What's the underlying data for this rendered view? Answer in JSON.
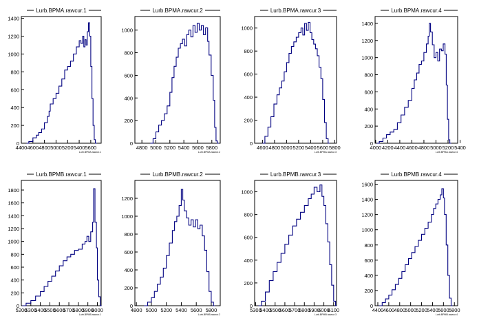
{
  "chart_data": [
    {
      "type": "histogram",
      "title": "Lurb.BPMA.rawcur.1",
      "xlabel": "Lurb.BPMA.rawcur.1",
      "x_ticks": [
        4400,
        4600,
        4800,
        5000,
        5200,
        5400,
        5600
      ],
      "xlim": [
        4400,
        5780
      ],
      "y_ticks": [
        0,
        200,
        400,
        600,
        800,
        1000,
        1200,
        1400
      ],
      "ylim": [
        0,
        1420
      ],
      "points": [
        [
          4490,
          0
        ],
        [
          4530,
          20
        ],
        [
          4600,
          60
        ],
        [
          4660,
          90
        ],
        [
          4700,
          120
        ],
        [
          4750,
          160
        ],
        [
          4800,
          230
        ],
        [
          4850,
          300
        ],
        [
          4880,
          360
        ],
        [
          4900,
          440
        ],
        [
          4950,
          500
        ],
        [
          5000,
          560
        ],
        [
          5050,
          640
        ],
        [
          5100,
          720
        ],
        [
          5150,
          820
        ],
        [
          5200,
          860
        ],
        [
          5250,
          920
        ],
        [
          5300,
          1000
        ],
        [
          5350,
          1080
        ],
        [
          5400,
          1150
        ],
        [
          5430,
          1120
        ],
        [
          5460,
          1200
        ],
        [
          5480,
          1080
        ],
        [
          5500,
          1160
        ],
        [
          5520,
          1100
        ],
        [
          5540,
          1250
        ],
        [
          5560,
          1350
        ],
        [
          5580,
          1200
        ],
        [
          5600,
          860
        ],
        [
          5620,
          500
        ],
        [
          5640,
          200
        ],
        [
          5660,
          40
        ],
        [
          5680,
          0
        ]
      ]
    },
    {
      "type": "histogram",
      "title": "Lurb.BPMA.rawcur.2",
      "xlabel": "Lurb.BPMA.rawcur.2",
      "x_ticks": [
        4800,
        5000,
        5200,
        5400,
        5600,
        5800
      ],
      "xlim": [
        4700,
        5920
      ],
      "y_ticks": [
        0,
        200,
        400,
        600,
        800,
        1000
      ],
      "ylim": [
        0,
        1120
      ],
      "points": [
        [
          4920,
          0
        ],
        [
          4960,
          40
        ],
        [
          5000,
          100
        ],
        [
          5040,
          160
        ],
        [
          5080,
          200
        ],
        [
          5120,
          260
        ],
        [
          5160,
          330
        ],
        [
          5200,
          450
        ],
        [
          5230,
          580
        ],
        [
          5260,
          680
        ],
        [
          5290,
          760
        ],
        [
          5320,
          840
        ],
        [
          5350,
          880
        ],
        [
          5380,
          920
        ],
        [
          5410,
          860
        ],
        [
          5440,
          960
        ],
        [
          5470,
          1000
        ],
        [
          5500,
          940
        ],
        [
          5530,
          1040
        ],
        [
          5560,
          980
        ],
        [
          5590,
          1060
        ],
        [
          5620,
          1000
        ],
        [
          5650,
          1040
        ],
        [
          5680,
          960
        ],
        [
          5710,
          1020
        ],
        [
          5740,
          900
        ],
        [
          5760,
          780
        ],
        [
          5790,
          600
        ],
        [
          5820,
          380
        ],
        [
          5840,
          140
        ],
        [
          5860,
          20
        ],
        [
          5880,
          0
        ]
      ]
    },
    {
      "type": "histogram",
      "title": "Lurb.BPMA.rawcur.3",
      "xlabel": "Lurb.BPMA.rawcur.3",
      "x_ticks": [
        4600,
        4800,
        5000,
        5200,
        5400,
        5600,
        5800
      ],
      "xlim": [
        4470,
        5830
      ],
      "y_ticks": [
        0,
        200,
        400,
        600,
        800,
        1000
      ],
      "ylim": [
        0,
        1100
      ],
      "points": [
        [
          4600,
          0
        ],
        [
          4640,
          60
        ],
        [
          4690,
          140
        ],
        [
          4740,
          230
        ],
        [
          4790,
          340
        ],
        [
          4840,
          420
        ],
        [
          4880,
          480
        ],
        [
          4920,
          540
        ],
        [
          4960,
          620
        ],
        [
          5000,
          700
        ],
        [
          5040,
          780
        ],
        [
          5080,
          840
        ],
        [
          5120,
          880
        ],
        [
          5160,
          920
        ],
        [
          5200,
          960
        ],
        [
          5240,
          1000
        ],
        [
          5270,
          940
        ],
        [
          5300,
          1040
        ],
        [
          5330,
          980
        ],
        [
          5360,
          1050
        ],
        [
          5390,
          960
        ],
        [
          5420,
          900
        ],
        [
          5450,
          860
        ],
        [
          5480,
          820
        ],
        [
          5510,
          760
        ],
        [
          5540,
          660
        ],
        [
          5570,
          560
        ],
        [
          5600,
          380
        ],
        [
          5630,
          180
        ],
        [
          5660,
          40
        ],
        [
          5690,
          0
        ]
      ]
    },
    {
      "type": "histogram",
      "title": "Lurb.BPMA.rawcur.4",
      "xlabel": "Lurb.BPMA.rawcur.4",
      "x_ticks": [
        4000,
        4200,
        4400,
        4600,
        4800,
        5000,
        5200,
        5400
      ],
      "xlim": [
        3990,
        5360
      ],
      "y_ticks": [
        0,
        200,
        400,
        600,
        800,
        1000,
        1200,
        1400
      ],
      "ylim": [
        0,
        1480
      ],
      "points": [
        [
          4020,
          0
        ],
        [
          4060,
          20
        ],
        [
          4120,
          60
        ],
        [
          4180,
          100
        ],
        [
          4240,
          130
        ],
        [
          4300,
          160
        ],
        [
          4360,
          240
        ],
        [
          4420,
          330
        ],
        [
          4480,
          420
        ],
        [
          4540,
          500
        ],
        [
          4600,
          640
        ],
        [
          4640,
          740
        ],
        [
          4680,
          820
        ],
        [
          4720,
          920
        ],
        [
          4760,
          960
        ],
        [
          4800,
          1060
        ],
        [
          4840,
          1160
        ],
        [
          4870,
          1250
        ],
        [
          4890,
          1400
        ],
        [
          4910,
          1300
        ],
        [
          4940,
          1150
        ],
        [
          4970,
          1000
        ],
        [
          5000,
          1060
        ],
        [
          5030,
          960
        ],
        [
          5060,
          1100
        ],
        [
          5090,
          1080
        ],
        [
          5120,
          1160
        ],
        [
          5150,
          1040
        ],
        [
          5170,
          680
        ],
        [
          5190,
          280
        ],
        [
          5210,
          40
        ],
        [
          5230,
          0
        ]
      ]
    },
    {
      "type": "histogram",
      "title": "Lurb.BPMB.rawcur.1",
      "xlabel": "Lurb.BPMB.rawcur.1",
      "x_ticks": [
        5200,
        5300,
        5400,
        5500,
        5600,
        5700,
        5800,
        5900,
        6000
      ],
      "xlim": [
        5200,
        6040
      ],
      "y_ticks": [
        0,
        200,
        400,
        600,
        800,
        1000,
        1200,
        1400,
        1600,
        1800
      ],
      "ylim": [
        0,
        1950
      ],
      "points": [
        [
          5210,
          0
        ],
        [
          5250,
          40
        ],
        [
          5300,
          80
        ],
        [
          5350,
          150
        ],
        [
          5400,
          220
        ],
        [
          5440,
          300
        ],
        [
          5480,
          380
        ],
        [
          5520,
          460
        ],
        [
          5560,
          540
        ],
        [
          5600,
          620
        ],
        [
          5640,
          700
        ],
        [
          5680,
          760
        ],
        [
          5720,
          800
        ],
        [
          5760,
          860
        ],
        [
          5800,
          880
        ],
        [
          5840,
          960
        ],
        [
          5870,
          1000
        ],
        [
          5890,
          1080
        ],
        [
          5910,
          1000
        ],
        [
          5930,
          1150
        ],
        [
          5950,
          1300
        ],
        [
          5960,
          1820
        ],
        [
          5975,
          1300
        ],
        [
          5990,
          900
        ],
        [
          6000,
          400
        ],
        [
          6015,
          140
        ],
        [
          6030,
          0
        ]
      ]
    },
    {
      "type": "histogram",
      "title": "Lurb.BPMB.rawcur.2",
      "xlabel": "Lurb.BPMB.rawcur.2",
      "x_ticks": [
        4800,
        5000,
        5200,
        5400,
        5600,
        5800
      ],
      "xlim": [
        4780,
        5920
      ],
      "y_ticks": [
        0,
        200,
        400,
        600,
        800,
        1000,
        1200
      ],
      "ylim": [
        0,
        1400
      ],
      "points": [
        [
          4900,
          0
        ],
        [
          4950,
          40
        ],
        [
          5000,
          90
        ],
        [
          5040,
          160
        ],
        [
          5080,
          240
        ],
        [
          5120,
          320
        ],
        [
          5160,
          420
        ],
        [
          5200,
          560
        ],
        [
          5240,
          700
        ],
        [
          5280,
          840
        ],
        [
          5310,
          940
        ],
        [
          5340,
          1000
        ],
        [
          5370,
          1120
        ],
        [
          5400,
          1300
        ],
        [
          5420,
          1180
        ],
        [
          5440,
          1060
        ],
        [
          5470,
          980
        ],
        [
          5500,
          900
        ],
        [
          5530,
          960
        ],
        [
          5560,
          880
        ],
        [
          5590,
          960
        ],
        [
          5620,
          860
        ],
        [
          5650,
          900
        ],
        [
          5680,
          780
        ],
        [
          5710,
          620
        ],
        [
          5740,
          380
        ],
        [
          5770,
          160
        ],
        [
          5800,
          40
        ],
        [
          5830,
          0
        ]
      ]
    },
    {
      "type": "histogram",
      "title": "Lurb.BPMB.rawcur.3",
      "xlabel": "Lurb.BPMB.rawcur.3",
      "x_ticks": [
        5300,
        5400,
        5500,
        5600,
        5700,
        5800,
        5900,
        6000,
        6100
      ],
      "xlim": [
        5290,
        6130
      ],
      "y_ticks": [
        0,
        200,
        400,
        600,
        800,
        1000
      ],
      "ylim": [
        0,
        1100
      ],
      "points": [
        [
          5330,
          0
        ],
        [
          5360,
          40
        ],
        [
          5400,
          120
        ],
        [
          5440,
          220
        ],
        [
          5480,
          300
        ],
        [
          5520,
          380
        ],
        [
          5560,
          460
        ],
        [
          5600,
          540
        ],
        [
          5640,
          620
        ],
        [
          5680,
          700
        ],
        [
          5720,
          760
        ],
        [
          5760,
          820
        ],
        [
          5800,
          880
        ],
        [
          5840,
          940
        ],
        [
          5870,
          980
        ],
        [
          5900,
          1040
        ],
        [
          5930,
          1000
        ],
        [
          5960,
          1060
        ],
        [
          5980,
          960
        ],
        [
          6000,
          880
        ],
        [
          6020,
          720
        ],
        [
          6040,
          560
        ],
        [
          6060,
          360
        ],
        [
          6080,
          180
        ],
        [
          6100,
          40
        ],
        [
          6120,
          0
        ]
      ]
    },
    {
      "type": "histogram",
      "title": "Lurb.BPMB.rawcur.4",
      "xlabel": "Lurb.BPMB.rawcur.4",
      "x_ticks": [
        4400,
        4600,
        4800,
        5000,
        5200,
        5400,
        5600,
        5800
      ],
      "xlim": [
        4350,
        5860
      ],
      "y_ticks": [
        0,
        200,
        400,
        600,
        800,
        1000,
        1200,
        1400,
        1600
      ],
      "ylim": [
        0,
        1650
      ],
      "points": [
        [
          4420,
          0
        ],
        [
          4480,
          40
        ],
        [
          4540,
          90
        ],
        [
          4600,
          140
        ],
        [
          4660,
          210
        ],
        [
          4720,
          280
        ],
        [
          4780,
          360
        ],
        [
          4840,
          450
        ],
        [
          4900,
          540
        ],
        [
          4960,
          620
        ],
        [
          5020,
          700
        ],
        [
          5080,
          780
        ],
        [
          5140,
          860
        ],
        [
          5200,
          940
        ],
        [
          5260,
          1020
        ],
        [
          5320,
          1100
        ],
        [
          5380,
          1200
        ],
        [
          5420,
          1280
        ],
        [
          5460,
          1340
        ],
        [
          5500,
          1400
        ],
        [
          5540,
          1460
        ],
        [
          5570,
          1540
        ],
        [
          5600,
          1420
        ],
        [
          5620,
          1200
        ],
        [
          5650,
          800
        ],
        [
          5680,
          400
        ],
        [
          5710,
          100
        ],
        [
          5740,
          0
        ]
      ]
    }
  ]
}
